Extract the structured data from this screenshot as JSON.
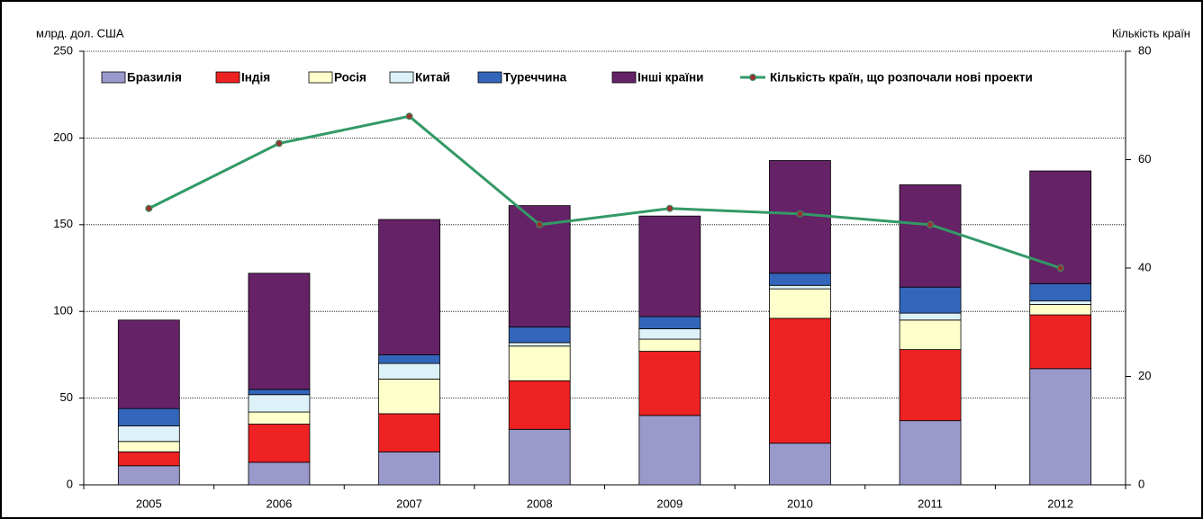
{
  "chart_data": {
    "type": "bar",
    "stacked": true,
    "y_label": "млрд. дол. США",
    "y2_label": "Кількість країн",
    "categories": [
      "2005",
      "2006",
      "2007",
      "2008",
      "2009",
      "2010",
      "2011",
      "2012"
    ],
    "series": [
      {
        "name": "Бразилія",
        "color": "#9999cc",
        "values": [
          11,
          13,
          19,
          32,
          40,
          24,
          37,
          67
        ]
      },
      {
        "name": "Індія",
        "color": "#ee2222",
        "values": [
          8,
          22,
          22,
          28,
          37,
          72,
          41,
          31
        ]
      },
      {
        "name": "Росія",
        "color": "#ffffcc",
        "values": [
          6,
          7,
          20,
          20,
          7,
          17,
          17,
          6
        ]
      },
      {
        "name": "Китай",
        "color": "#ddf2f8",
        "values": [
          9,
          10,
          9,
          2,
          6,
          2,
          4,
          2
        ]
      },
      {
        "name": "Туреччина",
        "color": "#3366bb",
        "values": [
          10,
          3,
          5,
          9,
          7,
          7,
          15,
          10
        ]
      },
      {
        "name": "Інші країни",
        "color": "#662266",
        "values": [
          51,
          67,
          78,
          70,
          58,
          65,
          59,
          65
        ]
      },
      {
        "name": "Кількість країн, що розпочали нові проекти",
        "color": "#339966",
        "marker_color": "#993333",
        "type": "line",
        "axis": "y2",
        "values": [
          51,
          63,
          68,
          48,
          51,
          50,
          48,
          40
        ]
      }
    ],
    "ylim": [
      0,
      250
    ],
    "yticks": [
      0,
      50,
      100,
      150,
      200,
      250
    ],
    "y2lim": [
      0,
      80
    ],
    "y2ticks": [
      0,
      20,
      40,
      60,
      80
    ],
    "grid": true,
    "legend": "top"
  }
}
